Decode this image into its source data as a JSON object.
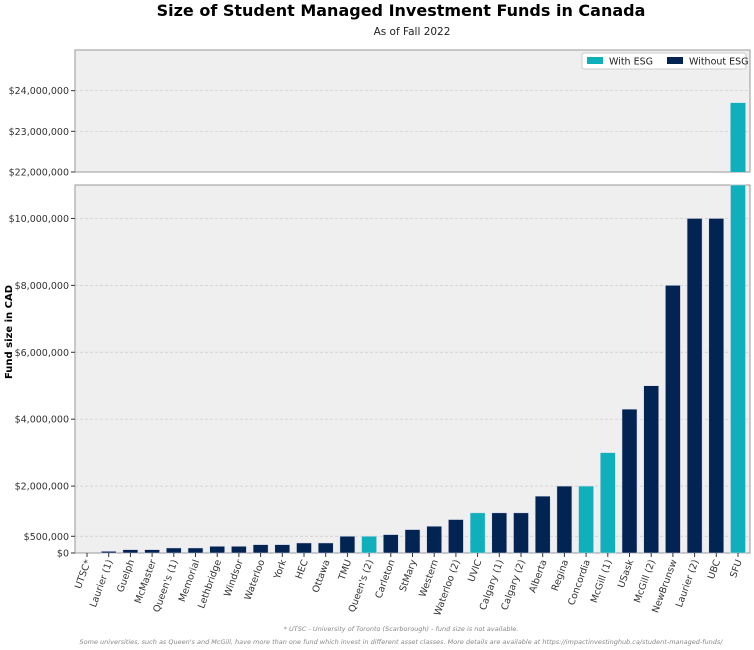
{
  "chart_data": {
    "type": "bar",
    "title": "Size of Student Managed Investment Funds in Canada",
    "subtitle": "As of Fall 2022",
    "xlabel": "",
    "ylabel": "Fund size in CAD",
    "broken_axis": true,
    "ylim_lower": [
      0,
      11000000
    ],
    "ylim_upper": [
      22000000,
      25000000
    ],
    "yticks_lower": [
      {
        "v": 0,
        "label": "$0"
      },
      {
        "v": 500000,
        "label": "$500,000"
      },
      {
        "v": 2000000,
        "label": "$2,000,000"
      },
      {
        "v": 4000000,
        "label": "$4,000,000"
      },
      {
        "v": 6000000,
        "label": "$6,000,000"
      },
      {
        "v": 8000000,
        "label": "$8,000,000"
      },
      {
        "v": 10000000,
        "label": "$10,000,000"
      }
    ],
    "yticks_upper": [
      {
        "v": 22000000,
        "label": "$22,000,000"
      },
      {
        "v": 23000000,
        "label": "$23,000,000"
      },
      {
        "v": 24000000,
        "label": "$24,000,000"
      }
    ],
    "grid": true,
    "legend_position": "top-right",
    "legend": [
      {
        "label": "With ESG",
        "color": "#0fb0bc"
      },
      {
        "label": "Without ESG",
        "color": "#012453"
      }
    ],
    "categories": [
      "UTSC*",
      "Laurier (1)",
      "Guelph",
      "McMaster",
      "Queen's (1)",
      "Memorial",
      "Lethbridge",
      "Windsor",
      "Waterloo",
      "York",
      "HEC",
      "Ottawa",
      "TMU",
      "Queen's (2)",
      "Carleton",
      "StMary",
      "Western",
      "Waterloo (2)",
      "UVIC",
      "Calgary (1)",
      "Calgary (2)",
      "Alberta",
      "Regina",
      "Concordia",
      "McGill (1)",
      "USask",
      "McGill (2)",
      "NewBrunsw",
      "Laurier (2)",
      "UBC",
      "SFU"
    ],
    "values": [
      0,
      50000,
      100000,
      100000,
      150000,
      150000,
      200000,
      200000,
      250000,
      250000,
      300000,
      300000,
      500000,
      500000,
      550000,
      700000,
      800000,
      1000000,
      1200000,
      1200000,
      1200000,
      1700000,
      2000000,
      2000000,
      3000000,
      4300000,
      5000000,
      8000000,
      10000000,
      10000000,
      23700000
    ],
    "esg": [
      false,
      false,
      false,
      false,
      false,
      false,
      false,
      false,
      false,
      false,
      false,
      false,
      false,
      true,
      false,
      false,
      false,
      false,
      true,
      false,
      false,
      false,
      false,
      true,
      true,
      false,
      false,
      false,
      false,
      false,
      true
    ]
  },
  "footnotes": {
    "line1": "* UTSC - University of Toronto (Scarborough) - fund size is not available.",
    "line2": "Some universities, such as Queen's and McGill, have more than one fund which invest in different asset classes. More details are available at https://impactinvestinghub.ca/student-managed-funds/"
  }
}
